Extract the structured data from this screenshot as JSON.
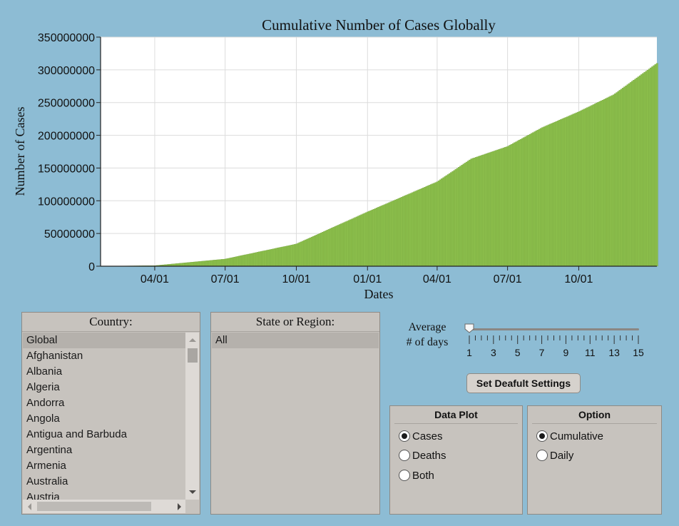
{
  "chart_data": {
    "type": "area",
    "title": "Cumulative Number of Cases Globally",
    "xlabel": "Dates",
    "ylabel": "Number of Cases",
    "ylim": [
      0,
      350000000
    ],
    "yticks": [
      "0",
      "50000000",
      "100000000",
      "150000000",
      "200000000",
      "250000000",
      "300000000",
      "350000000"
    ],
    "xticks": [
      "04/01",
      "07/01",
      "10/01",
      "01/01",
      "04/01",
      "07/01",
      "10/01"
    ],
    "grid": true,
    "color": "#8cbf4c",
    "x": [
      "01/22",
      "04/01",
      "07/01",
      "10/01",
      "01/01",
      "04/01",
      "05/15",
      "07/01",
      "08/15",
      "10/01",
      "11/15",
      "01/10"
    ],
    "values": [
      0,
      900000,
      11000000,
      34000000,
      83000000,
      129000000,
      164000000,
      183000000,
      212000000,
      236000000,
      262000000,
      310000000
    ]
  },
  "country": {
    "title": "Country:",
    "items": [
      "Global",
      "Afghanistan",
      "Albania",
      "Algeria",
      "Andorra",
      "Angola",
      "Antigua and Barbuda",
      "Argentina",
      "Armenia",
      "Australia",
      "Austria"
    ],
    "selected": "Global"
  },
  "state": {
    "title": "State or Region:",
    "items": [
      "All"
    ],
    "selected": "All"
  },
  "average": {
    "label_line1": "Average",
    "label_line2": "# of days",
    "value": 1,
    "min": 1,
    "max": 15,
    "tick_labels": [
      "1",
      "3",
      "5",
      "7",
      "9",
      "11",
      "13",
      "15"
    ]
  },
  "default_button": {
    "label": "Set Deafult Settings"
  },
  "data_plot": {
    "title": "Data Plot",
    "options": [
      "Cases",
      "Deaths",
      "Both"
    ],
    "selected": "Cases"
  },
  "option": {
    "title": "Option",
    "options": [
      "Cumulative",
      "Daily"
    ],
    "selected": "Cumulative"
  }
}
